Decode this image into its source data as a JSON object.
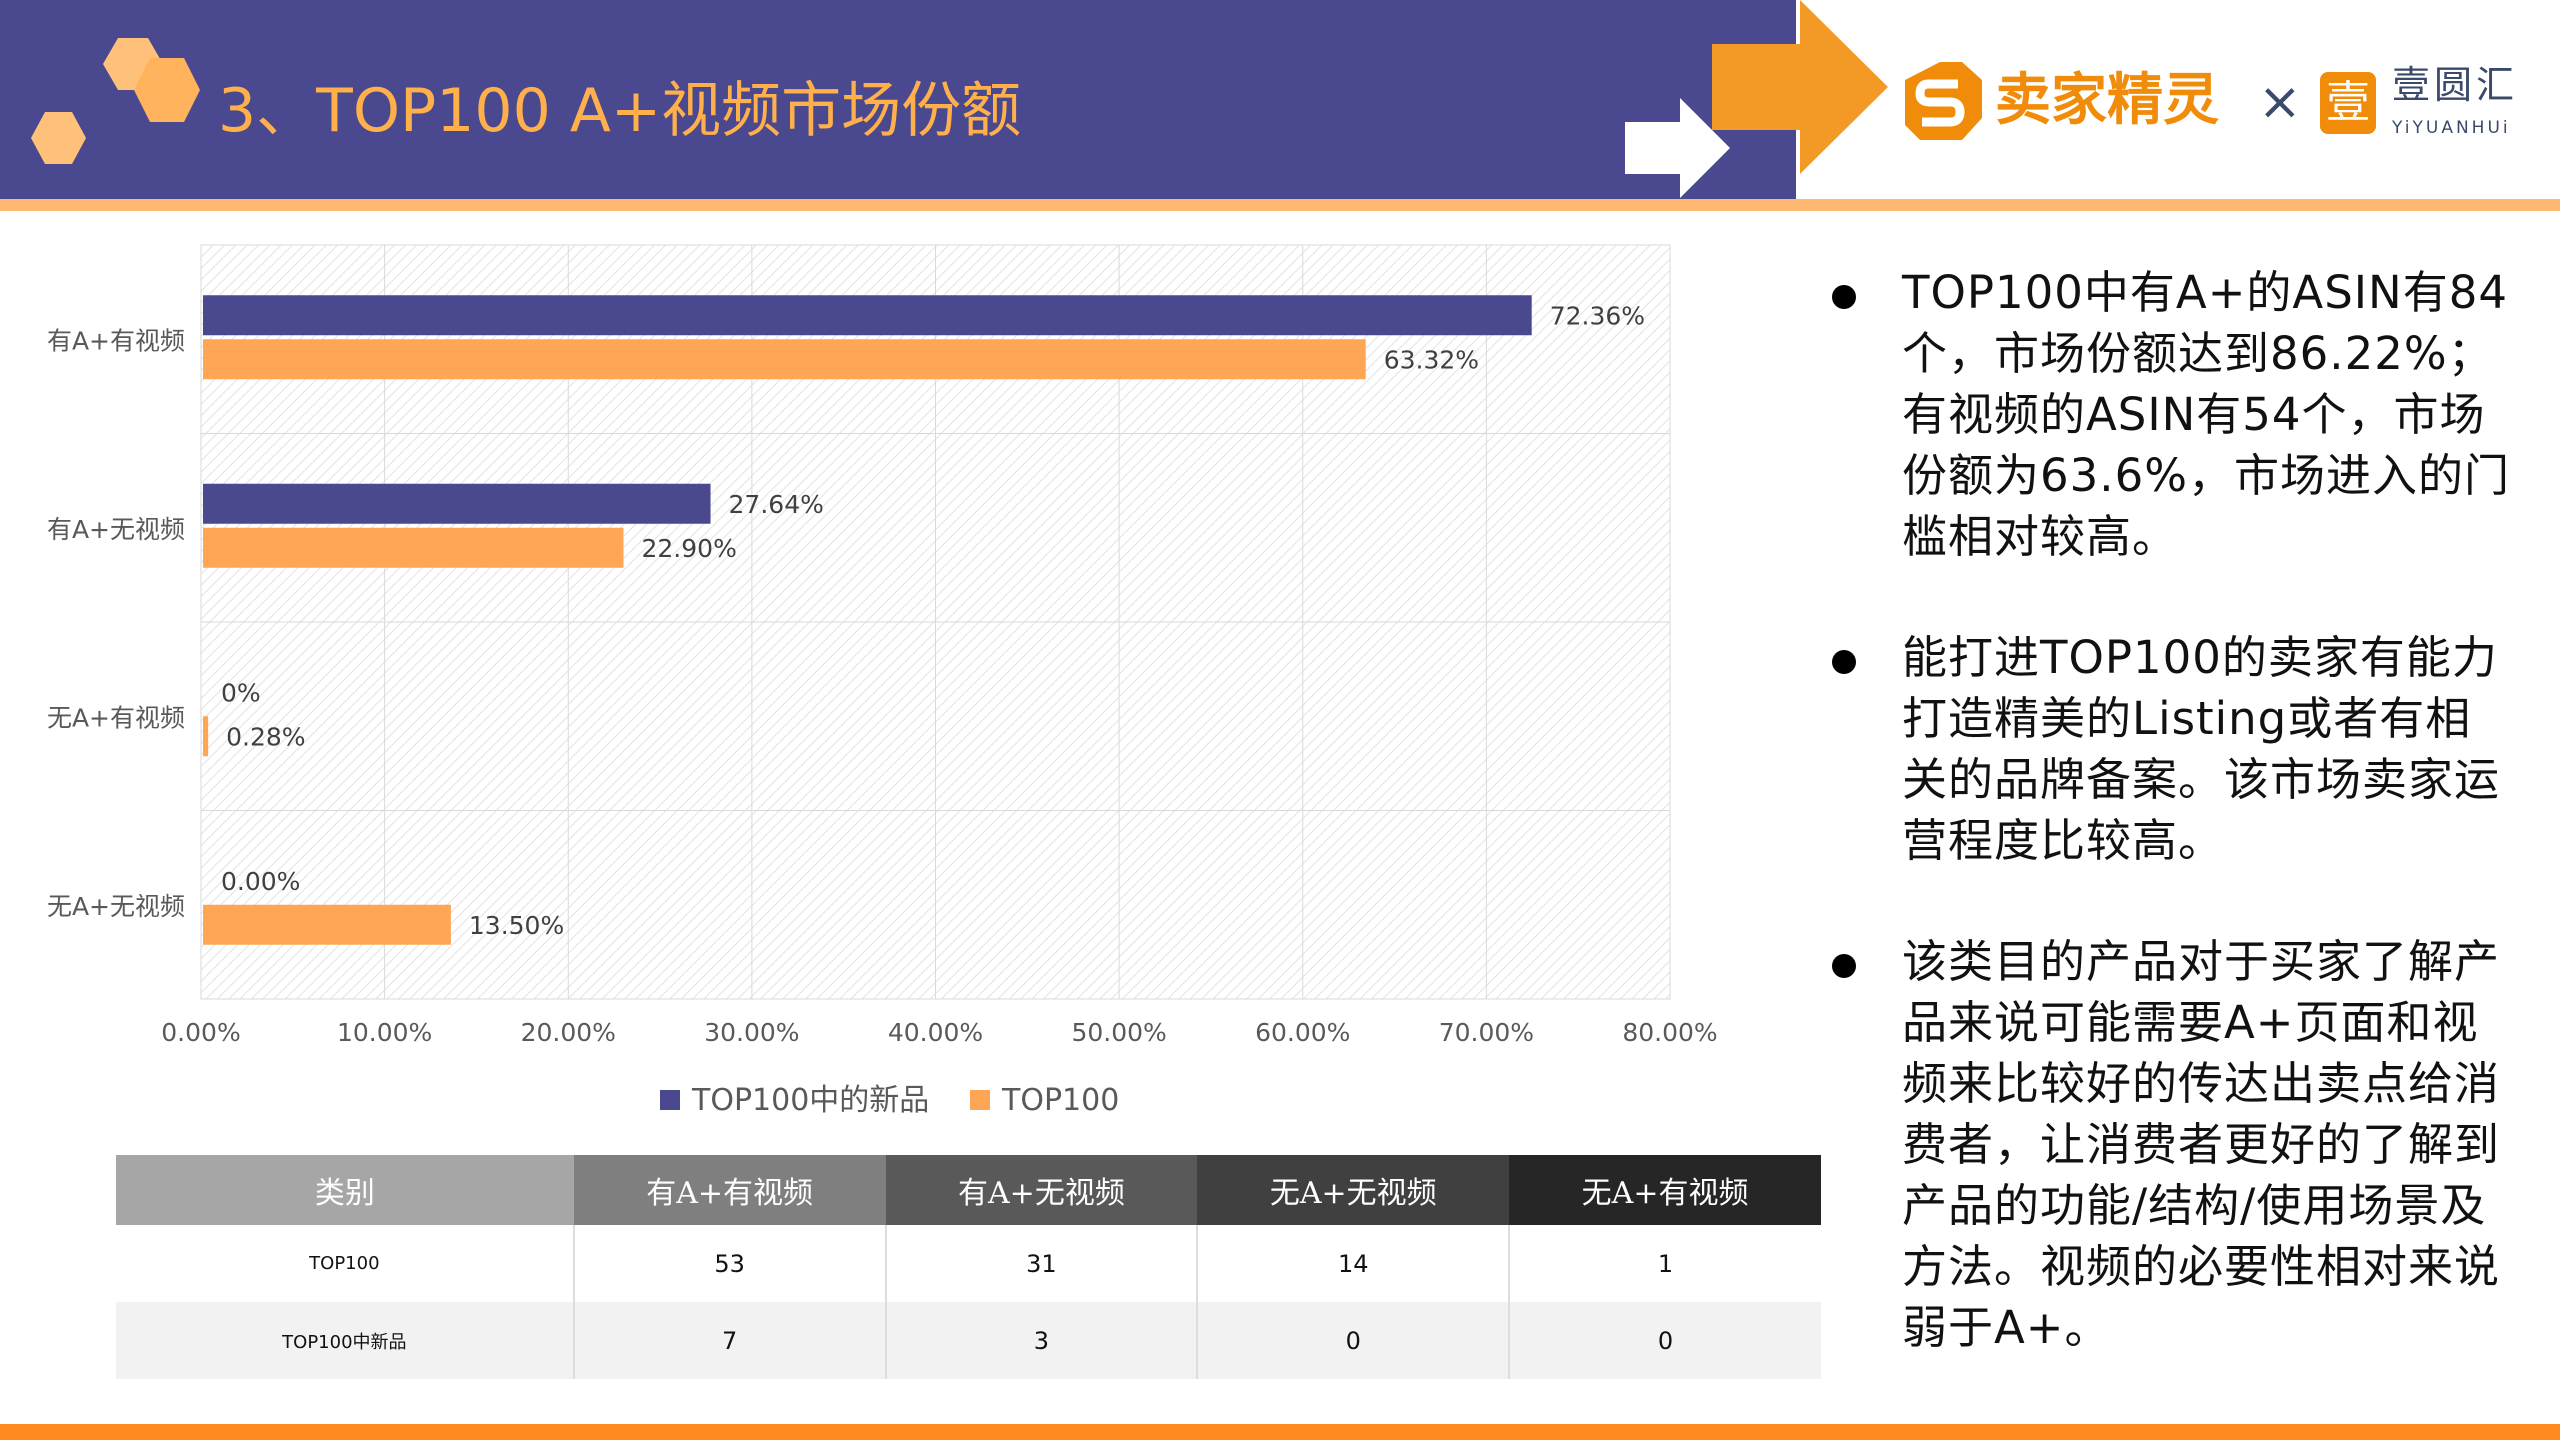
{
  "header": {
    "title": "3、TOP100 A+视频市场份额",
    "colors": {
      "purple": "#4a4990",
      "orange": "#f39a26"
    }
  },
  "logos": {
    "seller": "卖家精灵",
    "times": "×",
    "yiyuanhui_cn": "壹圆汇",
    "yiyuanhui_en": "YiYUANHUi",
    "yiyuanhui_mark": "壹"
  },
  "chart_data": {
    "type": "bar",
    "orientation": "horizontal",
    "categories": [
      "无A+无视频",
      "无A+有视频",
      "有A+无视频",
      "有A+有视频"
    ],
    "series": [
      {
        "name": "TOP100中的新品",
        "color": "#4a4990",
        "values": [
          0,
          0,
          27.64,
          72.36
        ],
        "labels": [
          "0.00%",
          "0%",
          "27.64%",
          "72.36%"
        ]
      },
      {
        "name": "TOP100",
        "color": "#ffa556",
        "values": [
          13.5,
          0.28,
          22.9,
          63.32
        ],
        "labels": [
          "13.50%",
          "0.28%",
          "22.90%",
          "63.32%"
        ]
      }
    ],
    "xlim": [
      0,
      80
    ],
    "xticks": [
      "0.00%",
      "10.00%",
      "20.00%",
      "30.00%",
      "40.00%",
      "50.00%",
      "60.00%",
      "70.00%",
      "80.00%"
    ],
    "grid": true,
    "legend": "bottom"
  },
  "table": {
    "headers": [
      "类别",
      "有A+有视频",
      "有A+无视频",
      "无A+无视频",
      "无A+有视频"
    ],
    "header_colors": [
      "#a6a6a6",
      "#7f7f7f",
      "#595959",
      "#404040",
      "#262626"
    ],
    "rows": [
      [
        "TOP100",
        "53",
        "31",
        "14",
        "1"
      ],
      [
        "TOP100中新品",
        "7",
        "3",
        "0",
        "0"
      ]
    ]
  },
  "bullets": [
    "TOP100中有A+的ASIN有84个，市场份额达到86.22%；有视频的ASIN有54个，市场份额为63.6%，市场进入的门槛相对较高。",
    "能打进TOP100的卖家有能力打造精美的Listing或者有相关的品牌备案。该市场卖家运营程度比较高。",
    "该类目的产品对于买家了解产品来说可能需要A+页面和视频来比较好的传达出卖点给消费者，让消费者更好的了解到产品的功能/结构/使用场景及方法。视频的必要性相对来说弱于A+。"
  ]
}
